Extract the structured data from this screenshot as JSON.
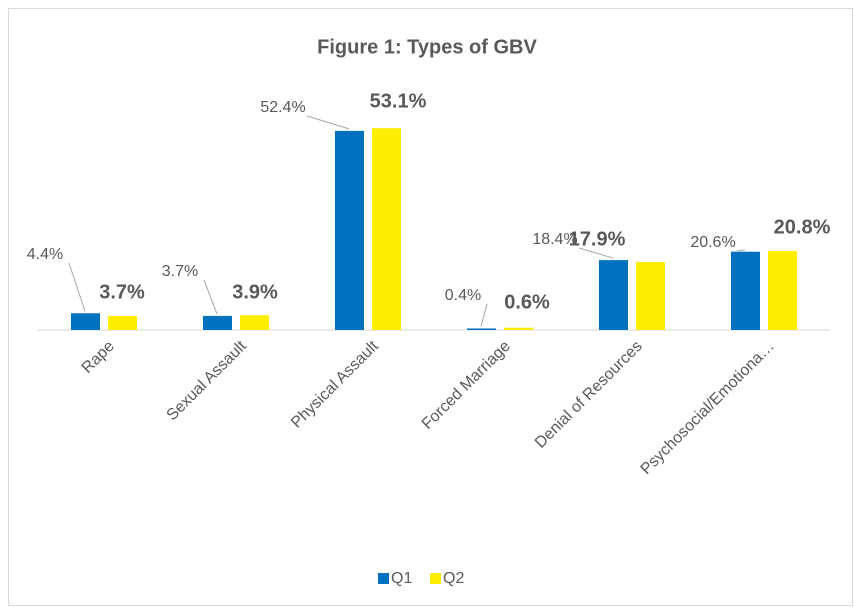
{
  "chart_data": {
    "type": "bar",
    "title": "Figure 1: Types of GBV",
    "categories": [
      "Rape",
      "Sexual Assault",
      "Physical Assault",
      "Forced Marriage",
      "Denial of Resources",
      "Psychosocial/Emotiona…"
    ],
    "series": [
      {
        "name": "Q1",
        "color": "#0070c0",
        "values": [
          4.4,
          3.7,
          52.4,
          0.4,
          18.4,
          20.6
        ],
        "value_labels": [
          "4.4%",
          "3.7%",
          "52.4%",
          "0.4%",
          "18.4%",
          "20.6%"
        ]
      },
      {
        "name": "Q2",
        "color": "#ffee00",
        "values": [
          3.7,
          3.9,
          53.1,
          0.6,
          17.9,
          20.8
        ],
        "value_labels": [
          "3.7%",
          "3.9%",
          "53.1%",
          "0.6%",
          "17.9%",
          "20.8%"
        ]
      }
    ],
    "legend": "bottom"
  }
}
